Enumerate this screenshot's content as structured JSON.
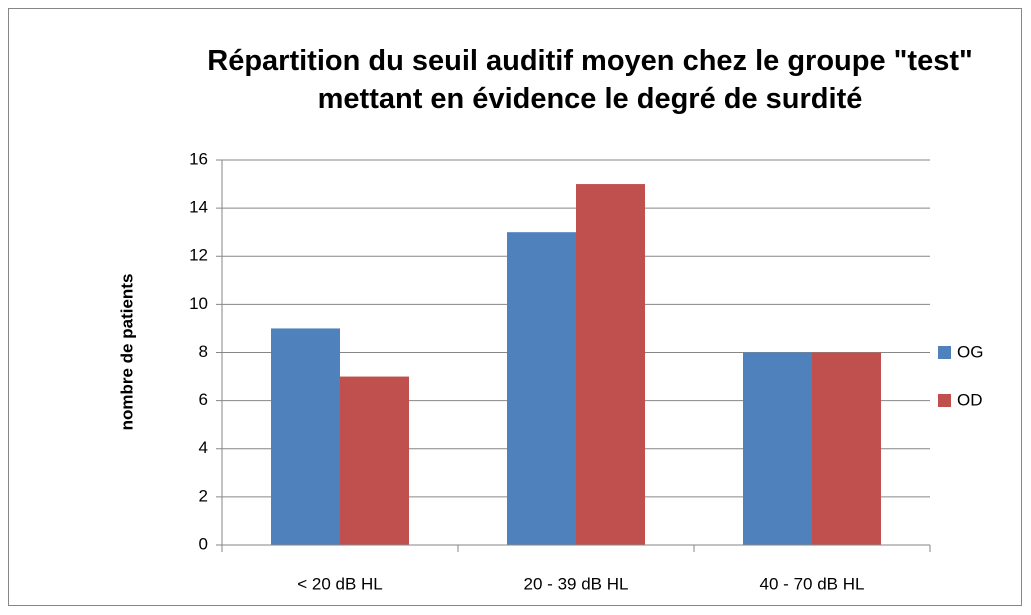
{
  "chart_data": {
    "type": "bar",
    "title": "Répartition du seuil auditif moyen chez le groupe \"test\" mettant en évidence le degré de surdité",
    "y_label": "nombre de patients",
    "categories": [
      "< 20 dB HL",
      "20 - 39 dB HL",
      "40 - 70 dB HL"
    ],
    "series": [
      {
        "name": "OG",
        "color": "#4f81bd",
        "values": [
          9,
          13,
          8
        ]
      },
      {
        "name": "OD",
        "color": "#c0504d",
        "values": [
          7,
          15,
          8
        ]
      }
    ],
    "ylim": [
      0,
      16
    ],
    "yticks": [
      0,
      2,
      4,
      6,
      8,
      10,
      12,
      14,
      16
    ],
    "grid": true,
    "legend": "right"
  }
}
